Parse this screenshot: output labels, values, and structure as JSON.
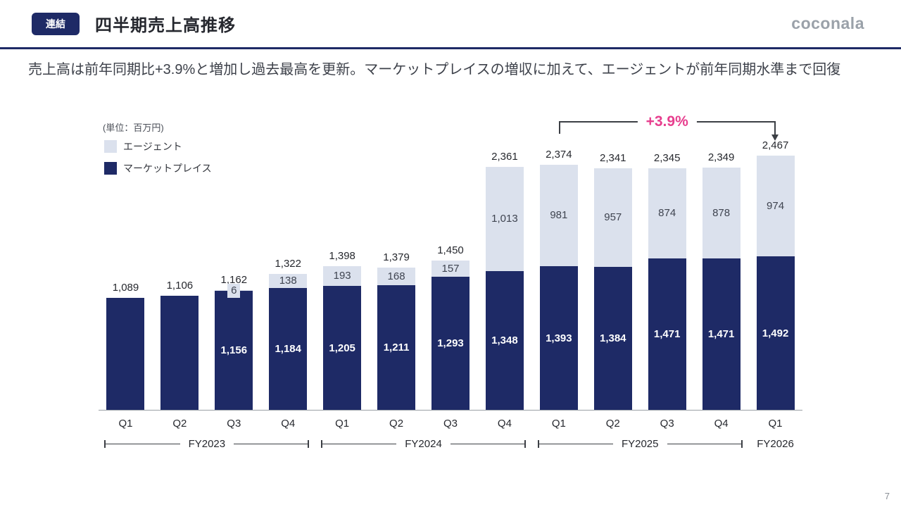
{
  "header": {
    "badge": "連結",
    "title": "四半期売上高推移",
    "logo": "coconala"
  },
  "summary": "売上高は前年同期比+3.9%と増加し過去最高を更新。マーケットプレイスの増収に加えて、エージェントが前年同期水準まで回復",
  "page_number": "7",
  "chart_data": {
    "type": "bar",
    "stacked": true,
    "title": "四半期売上高推移",
    "unit_label": "(単位：百万円)",
    "ylim": [
      0,
      2600
    ],
    "grid": false,
    "legend_position": "top-left",
    "legend": [
      {
        "name": "エージェント",
        "color": "#dbe1ed"
      },
      {
        "name": "マーケットプレイス",
        "color": "#1e2a66"
      }
    ],
    "categories": [
      "Q1",
      "Q2",
      "Q3",
      "Q4",
      "Q1",
      "Q2",
      "Q3",
      "Q4",
      "Q1",
      "Q2",
      "Q3",
      "Q4",
      "Q1"
    ],
    "fiscal_groups": [
      {
        "label": "FY2023",
        "span": 4
      },
      {
        "label": "FY2024",
        "span": 4
      },
      {
        "label": "FY2025",
        "span": 4
      },
      {
        "label": "FY2026",
        "span": 1
      }
    ],
    "series": [
      {
        "name": "マーケットプレイス",
        "values": [
          1089,
          1106,
          1156,
          1184,
          1205,
          1211,
          1293,
          1348,
          1393,
          1384,
          1471,
          1471,
          1492
        ]
      },
      {
        "name": "エージェント",
        "values": [
          null,
          null,
          6,
          138,
          193,
          168,
          157,
          1013,
          981,
          957,
          874,
          878,
          974
        ]
      }
    ],
    "totals": [
      1089,
      1106,
      1162,
      1322,
      1398,
      1379,
      1450,
      2361,
      2374,
      2341,
      2345,
      2349,
      2467
    ],
    "annotation": {
      "text": "+3.9%",
      "color": "#e73e8e",
      "from_category_index": 8,
      "to_category_index": 12
    }
  }
}
